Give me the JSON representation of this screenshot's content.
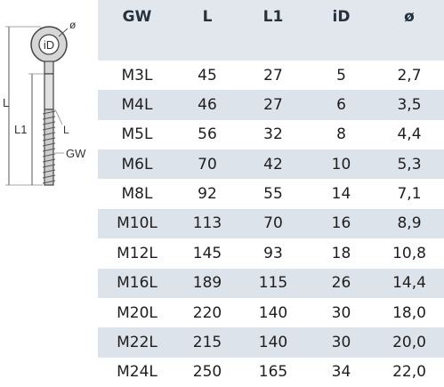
{
  "drawing": {
    "labels": {
      "diameter": "ø",
      "inner_diameter": "iD",
      "length": "L",
      "length1": "L1",
      "shank": "L",
      "thread": "GW"
    },
    "icon": "eye-bolt-technical-drawing"
  },
  "table": {
    "headers": [
      "GW",
      "L",
      "L1",
      "iD",
      "ø"
    ],
    "rows": [
      [
        "M3L",
        "45",
        "27",
        "5",
        "2,7"
      ],
      [
        "M4L",
        "46",
        "27",
        "6",
        "3,5"
      ],
      [
        "M5L",
        "56",
        "32",
        "8",
        "4,4"
      ],
      [
        "M6L",
        "70",
        "42",
        "10",
        "5,3"
      ],
      [
        "M8L",
        "92",
        "55",
        "14",
        "7,1"
      ],
      [
        "M10L",
        "113",
        "70",
        "16",
        "8,9"
      ],
      [
        "M12L",
        "145",
        "93",
        "18",
        "10,8"
      ],
      [
        "M16L",
        "189",
        "115",
        "26",
        "14,4"
      ],
      [
        "M20L",
        "220",
        "140",
        "30",
        "18,0"
      ],
      [
        "M22L",
        "215",
        "140",
        "30",
        "20,0"
      ],
      [
        "M24L",
        "250",
        "165",
        "34",
        "22,0"
      ]
    ]
  },
  "colors": {
    "header_bg": "#e2e7ee",
    "band_bg": "#dde3eb",
    "text": "#1e1e1e"
  }
}
